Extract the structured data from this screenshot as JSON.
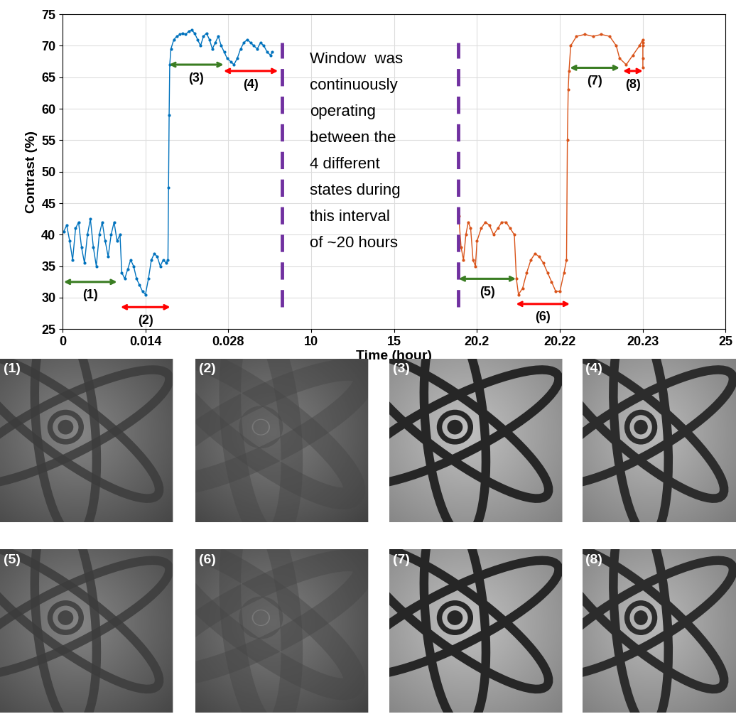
{
  "chart_data": {
    "type": "line",
    "xlabel": "Time (hour)",
    "ylabel": "Contrast (%)",
    "xlim": [
      0,
      25
    ],
    "xticks": [
      0,
      0.014,
      0.028,
      10,
      15,
      20.2,
      20.22,
      20.23,
      25
    ],
    "ylim": [
      25,
      75
    ],
    "yticks": [
      25,
      30,
      35,
      40,
      45,
      50,
      55,
      60,
      65,
      70,
      75
    ],
    "grid": true,
    "series": [
      {
        "color": "#0072bd",
        "marker": "point",
        "line_style": "solid",
        "x": [
          0.0002,
          0.0007,
          0.0012,
          0.0017,
          0.0022,
          0.0027,
          0.0032,
          0.0037,
          0.0042,
          0.0047,
          0.0052,
          0.0057,
          0.0062,
          0.0067,
          0.0072,
          0.0077,
          0.0082,
          0.0087,
          0.0092,
          0.0097,
          0.01,
          0.0105,
          0.011,
          0.0115,
          0.012,
          0.0125,
          0.013,
          0.0135,
          0.014,
          0.0145,
          0.015,
          0.0155,
          0.016,
          0.0165,
          0.017,
          0.0175,
          0.0178,
          0.0179,
          0.018,
          0.0181,
          0.0183,
          0.0188,
          0.0193,
          0.0198,
          0.0203,
          0.0208,
          0.0213,
          0.0218,
          0.0223,
          0.0228,
          0.0233,
          0.0238,
          0.0243,
          0.0248,
          0.0253,
          0.0258,
          0.0263,
          0.0268,
          0.0273,
          0.0278,
          0.3,
          0.7,
          1.1,
          1.5,
          1.9,
          2.3,
          2.7,
          3.1,
          3.5,
          3.9,
          4.3,
          4.7,
          5.1,
          5.3
        ],
        "values": [
          40.5,
          41.5,
          39,
          36,
          41,
          42,
          38,
          35.5,
          40,
          42.5,
          38,
          35,
          40,
          42,
          39,
          36.5,
          40,
          42,
          39,
          40,
          34,
          33,
          34.5,
          36,
          35,
          33,
          32,
          31,
          30.5,
          33,
          36,
          37,
          36.5,
          35,
          36,
          35.5,
          36,
          47.5,
          59,
          67,
          69.5,
          71,
          71.5,
          71.8,
          72,
          71.8,
          72.3,
          72.5,
          72,
          71,
          70,
          71.5,
          72,
          71,
          69.5,
          70.5,
          71.5,
          70,
          69,
          68,
          67.5,
          67,
          68,
          69.5,
          70.5,
          71,
          70.5,
          70,
          69.5,
          70.5,
          70,
          69,
          68.5,
          69
        ]
      },
      {
        "color": "#d95319",
        "marker": "point",
        "line_style": "solid",
        "x": [
          19.05,
          19.2,
          19.35,
          19.5,
          19.65,
          19.8,
          19.95,
          20.1,
          20.2,
          20.201,
          20.202,
          20.203,
          20.204,
          20.205,
          20.206,
          20.207,
          20.208,
          20.209,
          20.2095,
          20.21,
          20.211,
          20.212,
          20.213,
          20.214,
          20.215,
          20.216,
          20.217,
          20.218,
          20.219,
          20.22,
          20.2205,
          20.2208,
          20.2209,
          20.221,
          20.2211,
          20.2213,
          20.222,
          20.223,
          20.224,
          20.225,
          20.226,
          20.2268,
          20.2272,
          20.228,
          20.2288,
          20.2296,
          20.2304,
          20.2312,
          20.232,
          20.2328,
          20.2334
        ],
        "values": [
          43,
          38,
          36,
          40,
          42,
          41,
          36,
          35,
          39,
          41,
          42,
          41.5,
          40,
          41,
          42,
          42,
          41,
          40,
          33,
          30.5,
          31.5,
          34,
          36,
          37,
          36.5,
          35.5,
          34,
          32.5,
          31,
          31,
          34,
          36,
          55,
          63,
          66,
          70,
          71.5,
          71.8,
          71.5,
          71.8,
          71.5,
          70,
          68,
          67,
          68.5,
          70,
          71,
          70.5,
          70,
          68,
          66.5
        ]
      }
    ],
    "annotations": [
      {
        "text": "(1)",
        "x": [
          0.0002,
          0.0092
        ],
        "y": 32.5,
        "color": "#3a7d22"
      },
      {
        "text": "(2)",
        "x": [
          0.0098,
          0.0182
        ],
        "y": 28.5,
        "color": "#ff0000"
      },
      {
        "text": "(3)",
        "x": [
          0.018,
          0.0272
        ],
        "y": 67,
        "color": "#3a7d22"
      },
      {
        "text": "(4)",
        "x": [
          0.0272,
          6.01
        ],
        "y": 66,
        "color": "#ff0000"
      },
      {
        "text": "(5)",
        "x": [
          19.05,
          20.2094
        ],
        "y": 33,
        "color": "#3a7d22"
      },
      {
        "text": "(6)",
        "x": [
          20.2094,
          20.2212
        ],
        "y": 29,
        "color": "#ff0000"
      },
      {
        "text": "(7)",
        "x": [
          20.2212,
          20.2272
        ],
        "y": 66.5,
        "color": "#3a7d22"
      },
      {
        "text": "(8)",
        "x": [
          20.2276,
          20.2341
        ],
        "y": 66,
        "color": "#ff0000"
      }
    ],
    "vlines": [
      {
        "x": 6.48,
        "y": [
          28.5,
          70.5
        ],
        "color": "#7030a0",
        "line_style": "dashed"
      },
      {
        "x": 19.01,
        "y": [
          28.5,
          70.5
        ],
        "color": "#7030a0",
        "line_style": "dashed"
      }
    ],
    "note": {
      "text": "Window  was\ncontinuously\noperating\nbetween the\n4 different\nstates during\nthis interval\nof ~20 hours",
      "x": 9.8,
      "y": 69
    }
  },
  "panels": [
    "(1)",
    "(2)",
    "(3)",
    "(4)",
    "(5)",
    "(6)",
    "(7)",
    "(8)"
  ]
}
